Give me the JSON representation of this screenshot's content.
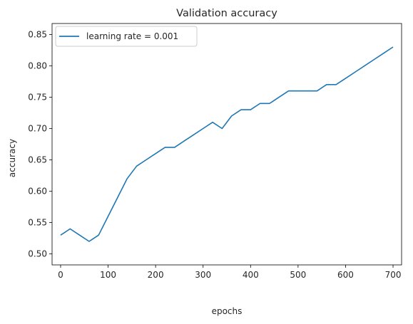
{
  "chart_data": {
    "type": "line",
    "title": "Validation accuracy",
    "xlabel": "epochs",
    "ylabel": "accuracy",
    "xlim": [
      -18,
      718
    ],
    "ylim": [
      0.4825,
      0.8675
    ],
    "xticks": [
      0,
      100,
      200,
      300,
      400,
      500,
      600,
      700
    ],
    "yticks": [
      0.5,
      0.55,
      0.6,
      0.65,
      0.7,
      0.75,
      0.8,
      0.85
    ],
    "xtick_labels": [
      "0",
      "100",
      "200",
      "300",
      "400",
      "500",
      "600",
      "700"
    ],
    "ytick_labels": [
      "0.50",
      "0.55",
      "0.60",
      "0.65",
      "0.70",
      "0.75",
      "0.80",
      "0.85"
    ],
    "grid": false,
    "legend_position": "top-left",
    "series": [
      {
        "name": "learning rate = 0.001",
        "color": "#1f77b4",
        "x": [
          0,
          20,
          40,
          60,
          80,
          100,
          120,
          140,
          160,
          180,
          200,
          220,
          240,
          260,
          280,
          300,
          320,
          340,
          360,
          380,
          400,
          420,
          440,
          460,
          480,
          500,
          520,
          540,
          560,
          580,
          600,
          620,
          640,
          660,
          680,
          700
        ],
        "y": [
          0.53,
          0.54,
          0.53,
          0.52,
          0.53,
          0.56,
          0.59,
          0.62,
          0.64,
          0.65,
          0.66,
          0.67,
          0.67,
          0.68,
          0.69,
          0.7,
          0.71,
          0.7,
          0.72,
          0.73,
          0.73,
          0.74,
          0.74,
          0.75,
          0.76,
          0.76,
          0.76,
          0.76,
          0.77,
          0.77,
          0.78,
          0.79,
          0.8,
          0.81,
          0.82,
          0.83
        ]
      }
    ]
  }
}
